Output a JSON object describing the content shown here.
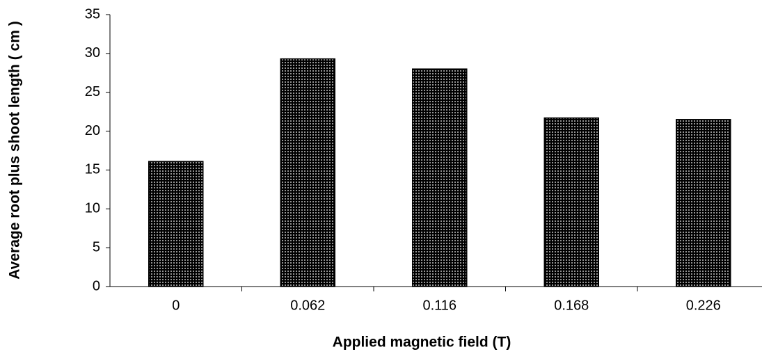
{
  "chart_data": {
    "type": "bar",
    "x_label": "Applied magnetic field (T)",
    "y_label": "Average root plus shoot length ( cm )",
    "categories": [
      "0",
      "0.062",
      "0.116",
      "0.168",
      "0.226"
    ],
    "values": [
      16.1,
      29.3,
      28.0,
      21.7,
      21.5
    ],
    "color": "#000000",
    "ylim": [
      0,
      35
    ],
    "yticks": [
      0,
      5,
      10,
      15,
      20,
      25,
      30,
      35
    ],
    "grid": false
  }
}
